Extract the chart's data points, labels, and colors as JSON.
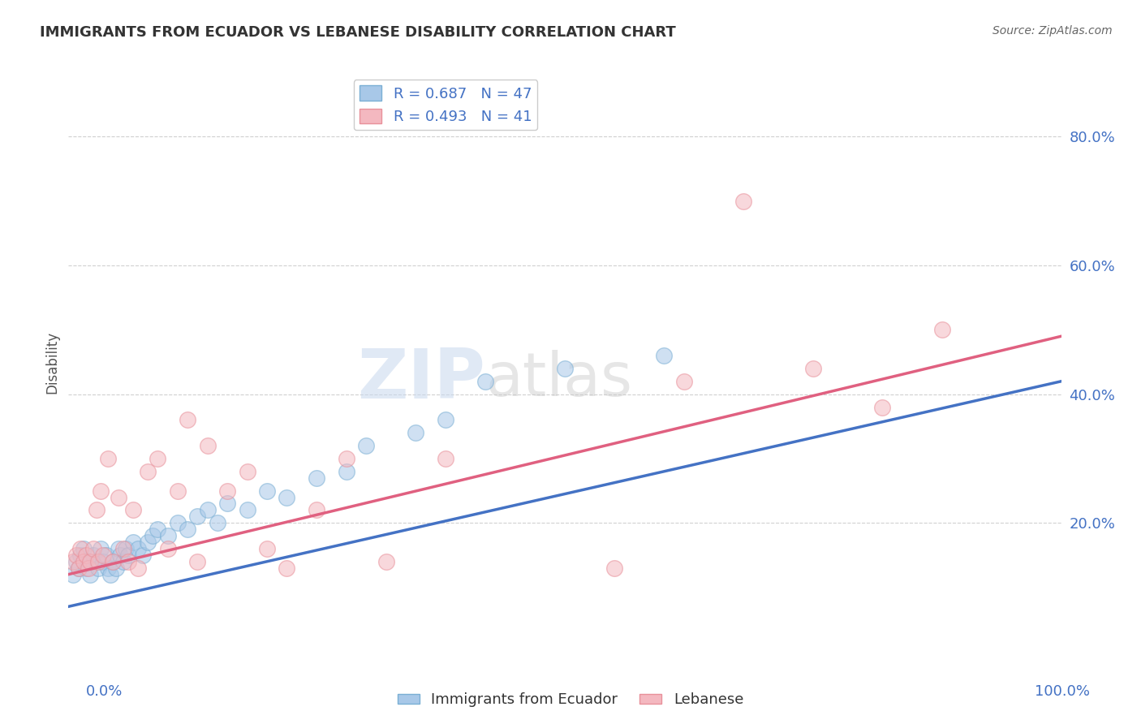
{
  "title": "IMMIGRANTS FROM ECUADOR VS LEBANESE DISABILITY CORRELATION CHART",
  "source": "Source: ZipAtlas.com",
  "ylabel": "Disability",
  "xlim": [
    0.0,
    1.0
  ],
  "ylim": [
    0.0,
    0.9
  ],
  "yticks": [
    0.2,
    0.4,
    0.6,
    0.8
  ],
  "ytick_labels": [
    "20.0%",
    "40.0%",
    "60.0%",
    "80.0%"
  ],
  "xticks": [
    0.0,
    1.0
  ],
  "xtick_labels": [
    "0.0%",
    "100.0%"
  ],
  "legend1_label": "R = 0.687   N = 47",
  "legend2_label": "R = 0.493   N = 41",
  "blue_color": "#a8c8e8",
  "pink_color": "#f4b8c0",
  "blue_edge_color": "#7aafd4",
  "pink_edge_color": "#e8909a",
  "blue_line_color": "#4472c4",
  "pink_line_color": "#e06080",
  "watermark_zip": "ZIP",
  "watermark_atlas": "atlas",
  "blue_scatter_x": [
    0.005,
    0.008,
    0.01,
    0.012,
    0.015,
    0.018,
    0.02,
    0.022,
    0.025,
    0.028,
    0.03,
    0.032,
    0.035,
    0.038,
    0.04,
    0.042,
    0.045,
    0.048,
    0.05,
    0.052,
    0.055,
    0.058,
    0.06,
    0.065,
    0.07,
    0.075,
    0.08,
    0.085,
    0.09,
    0.1,
    0.11,
    0.12,
    0.13,
    0.14,
    0.15,
    0.16,
    0.18,
    0.2,
    0.22,
    0.25,
    0.28,
    0.3,
    0.35,
    0.38,
    0.42,
    0.5,
    0.6
  ],
  "blue_scatter_y": [
    0.12,
    0.14,
    0.13,
    0.15,
    0.16,
    0.13,
    0.14,
    0.12,
    0.15,
    0.14,
    0.13,
    0.16,
    0.14,
    0.15,
    0.13,
    0.12,
    0.14,
    0.13,
    0.16,
    0.15,
    0.14,
    0.16,
    0.15,
    0.17,
    0.16,
    0.15,
    0.17,
    0.18,
    0.19,
    0.18,
    0.2,
    0.19,
    0.21,
    0.22,
    0.2,
    0.23,
    0.22,
    0.25,
    0.24,
    0.27,
    0.28,
    0.32,
    0.34,
    0.36,
    0.42,
    0.44,
    0.46
  ],
  "pink_scatter_x": [
    0.005,
    0.008,
    0.01,
    0.012,
    0.015,
    0.018,
    0.02,
    0.022,
    0.025,
    0.028,
    0.03,
    0.032,
    0.035,
    0.04,
    0.045,
    0.05,
    0.055,
    0.06,
    0.065,
    0.07,
    0.08,
    0.09,
    0.1,
    0.11,
    0.12,
    0.13,
    0.14,
    0.16,
    0.18,
    0.2,
    0.22,
    0.25,
    0.28,
    0.32,
    0.38,
    0.55,
    0.62,
    0.68,
    0.75,
    0.82,
    0.88
  ],
  "pink_scatter_y": [
    0.14,
    0.15,
    0.13,
    0.16,
    0.14,
    0.15,
    0.13,
    0.14,
    0.16,
    0.22,
    0.14,
    0.25,
    0.15,
    0.3,
    0.14,
    0.24,
    0.16,
    0.14,
    0.22,
    0.13,
    0.28,
    0.3,
    0.16,
    0.25,
    0.36,
    0.14,
    0.32,
    0.25,
    0.28,
    0.16,
    0.13,
    0.22,
    0.3,
    0.14,
    0.3,
    0.13,
    0.42,
    0.7,
    0.44,
    0.38,
    0.5
  ],
  "blue_line_x": [
    0.0,
    1.0
  ],
  "blue_line_y": [
    0.07,
    0.42
  ],
  "pink_line_x": [
    0.0,
    1.0
  ],
  "pink_line_y": [
    0.12,
    0.49
  ],
  "grid_color": "#d0d0d0",
  "background_color": "#ffffff",
  "title_color": "#333333",
  "axis_label_color": "#555555",
  "tick_label_color": "#4472c4",
  "source_color": "#666666"
}
